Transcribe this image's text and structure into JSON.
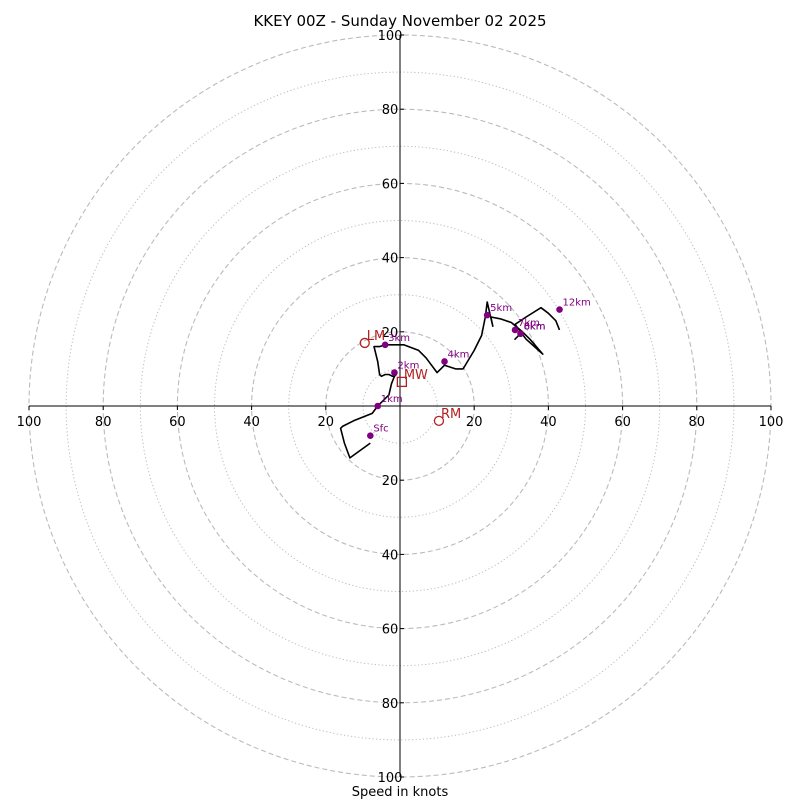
{
  "chart_data": {
    "type": "hodograph",
    "title": "KKEY 00Z - Sunday November 02 2025",
    "xlabel": "Speed in knots",
    "rlim": [
      0,
      100
    ],
    "dashed_rings": [
      20,
      40,
      60,
      80,
      100
    ],
    "dotted_rings": [
      10,
      30,
      50,
      70,
      90
    ],
    "x_ticks": [
      "100",
      "80",
      "60",
      "40",
      "20",
      "20",
      "40",
      "60",
      "80",
      "100"
    ],
    "x_tick_values": [
      -100,
      -80,
      -60,
      -40,
      -20,
      20,
      40,
      60,
      80,
      100
    ],
    "y_ticks": [
      "100",
      "80",
      "60",
      "40",
      "20",
      "20",
      "40",
      "60",
      "80",
      "100"
    ],
    "y_tick_values": [
      100,
      80,
      60,
      40,
      20,
      -20,
      -40,
      -60,
      -80,
      -100
    ],
    "trace": [
      [
        -8,
        -10
      ],
      [
        -13.5,
        -14
      ],
      [
        -15,
        -10
      ],
      [
        -16,
        -6
      ],
      [
        -15.5,
        -5.5
      ],
      [
        -12.5,
        -4
      ],
      [
        -7.5,
        -2
      ],
      [
        -6,
        0
      ],
      [
        -3,
        3
      ],
      [
        -2.3,
        6
      ],
      [
        -1.5,
        8
      ],
      [
        -1,
        8.5
      ],
      [
        -2,
        8
      ],
      [
        -3,
        8.5
      ],
      [
        -4,
        8.5
      ],
      [
        -5,
        8
      ],
      [
        -5.5,
        8.5
      ],
      [
        -6,
        12
      ],
      [
        -7,
        16
      ],
      [
        -5.5,
        16
      ],
      [
        -4,
        16.5
      ],
      [
        1,
        16.5
      ],
      [
        5,
        15
      ],
      [
        7,
        13
      ],
      [
        10,
        9
      ],
      [
        11,
        10
      ],
      [
        12,
        11
      ],
      [
        15,
        10
      ],
      [
        17,
        10
      ],
      [
        20,
        15
      ],
      [
        22,
        19
      ],
      [
        23,
        24
      ],
      [
        23.5,
        28
      ],
      [
        25,
        21.5
      ],
      [
        24.5,
        24
      ],
      [
        27,
        23.5
      ],
      [
        30,
        22.5
      ],
      [
        33,
        20
      ],
      [
        31,
        18
      ],
      [
        33,
        20
      ],
      [
        35,
        18
      ],
      [
        38.5,
        14
      ],
      [
        34,
        18
      ],
      [
        31,
        22
      ],
      [
        34,
        24
      ],
      [
        38,
        26.5
      ],
      [
        40,
        25
      ],
      [
        42,
        23
      ],
      [
        43,
        20.5
      ]
    ],
    "height_markers": [
      {
        "label": "Sfc",
        "u": -8,
        "v": -8
      },
      {
        "label": "1km",
        "u": -6,
        "v": 0
      },
      {
        "label": "2km",
        "u": -1.5,
        "v": 9
      },
      {
        "label": "3km",
        "u": -4,
        "v": 16.5
      },
      {
        "label": "4km",
        "u": 12,
        "v": 12
      },
      {
        "label": "5km",
        "u": 23.5,
        "v": 24.5
      },
      {
        "label": "6km",
        "u": 32.5,
        "v": 19.5
      },
      {
        "label": "7km",
        "u": 31,
        "v": 20.5
      },
      {
        "label": "8km",
        "u": 32.5,
        "v": 19.5
      },
      {
        "label": "12km",
        "u": 43,
        "v": 26
      }
    ],
    "motion_markers": [
      {
        "label": "LM",
        "u": -9.5,
        "v": 17,
        "shape": "circle"
      },
      {
        "label": "MW",
        "u": 0.5,
        "v": 6.5,
        "shape": "square"
      },
      {
        "label": "RM",
        "u": 10.5,
        "v": -4,
        "shape": "circle"
      }
    ],
    "colors": {
      "trace": "#000000",
      "height_marker": "#800080",
      "motion_marker": "#b22222",
      "grid": "#bbbbbb",
      "axis": "#000000"
    }
  }
}
